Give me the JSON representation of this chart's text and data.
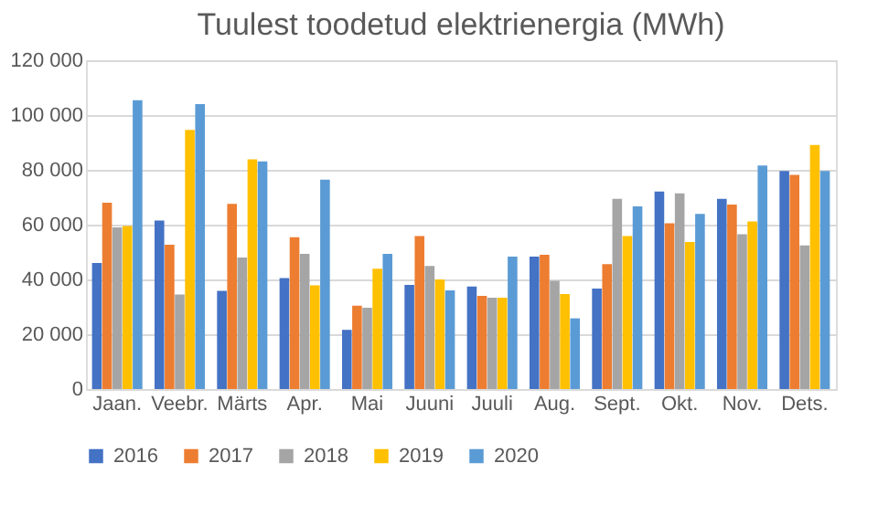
{
  "chart_data": {
    "type": "bar",
    "title": "Tuulest toodetud elektrienergia (MWh)",
    "categories": [
      "Jaan.",
      "Veebr.",
      "Märts",
      "Apr.",
      "Mai",
      "Juuni",
      "Juuli",
      "Aug.",
      "Sept.",
      "Okt.",
      "Nov.",
      "Dets."
    ],
    "series": [
      {
        "name": "2016",
        "color": "#4472c4",
        "values": [
          46000,
          61500,
          35800,
          40500,
          21600,
          38000,
          37400,
          48300,
          36700,
          72100,
          69400,
          79600
        ]
      },
      {
        "name": "2017",
        "color": "#ed7d31",
        "values": [
          68000,
          52700,
          67600,
          55400,
          30400,
          55800,
          34000,
          49000,
          45600,
          60500,
          67300,
          78200
        ]
      },
      {
        "name": "2018",
        "color": "#a5a5a5",
        "values": [
          59000,
          34500,
          48000,
          49300,
          29700,
          44900,
          33300,
          39500,
          69400,
          71400,
          56500,
          52400
        ]
      },
      {
        "name": "2019",
        "color": "#ffc000",
        "values": [
          59500,
          94600,
          83800,
          37800,
          43900,
          40000,
          33300,
          34700,
          55800,
          53700,
          61200,
          89100
        ]
      },
      {
        "name": "2020",
        "color": "#5b9bd5",
        "values": [
          105400,
          104000,
          83100,
          76400,
          49300,
          36000,
          48300,
          25800,
          66700,
          63900,
          81600,
          79600
        ]
      }
    ],
    "ylim": [
      0,
      120000
    ],
    "yticks": [
      0,
      20000,
      40000,
      60000,
      80000,
      100000,
      120000
    ],
    "grid": "y",
    "legend": "bottom"
  }
}
